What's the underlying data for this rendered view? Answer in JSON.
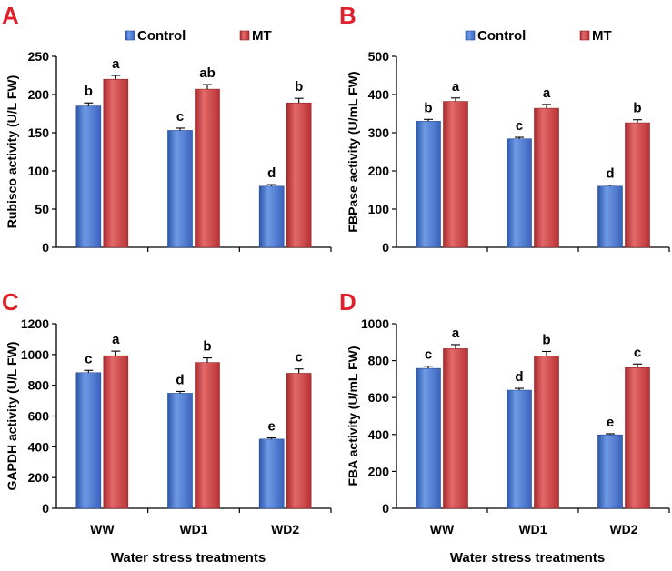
{
  "colors": {
    "control": "#3f6fc8",
    "mt": "#c8383a",
    "letter": "#e0202a"
  },
  "chart_data": [
    {
      "type": "bar",
      "panel": "A",
      "ylabel": "Rubisco activity (U/L FW)",
      "xlabel": "",
      "categories": [
        "WW",
        "WD1",
        "WD2"
      ],
      "ylim": [
        0,
        250
      ],
      "yticks": [
        0,
        50,
        100,
        150,
        200,
        250
      ],
      "legend": [
        "Control",
        "MT"
      ],
      "series": [
        {
          "name": "Control",
          "values": [
            185,
            153,
            80
          ],
          "errors": [
            4,
            3,
            2
          ],
          "letters": [
            "b",
            "c",
            "d"
          ]
        },
        {
          "name": "MT",
          "values": [
            220,
            207,
            189
          ],
          "errors": [
            5,
            6,
            6
          ],
          "letters": [
            "a",
            "ab",
            "b"
          ]
        }
      ]
    },
    {
      "type": "bar",
      "panel": "B",
      "ylabel": "FBPase activity (U/mL FW)",
      "xlabel": "",
      "categories": [
        "WW",
        "WD1",
        "WD2"
      ],
      "ylim": [
        0,
        500
      ],
      "yticks": [
        0,
        100,
        200,
        300,
        400,
        500
      ],
      "legend": [
        "Control",
        "MT"
      ],
      "series": [
        {
          "name": "Control",
          "values": [
            330,
            284,
            160
          ],
          "errors": [
            5,
            4,
            3
          ],
          "letters": [
            "b",
            "c",
            "d"
          ]
        },
        {
          "name": "MT",
          "values": [
            382,
            364,
            326
          ],
          "errors": [
            9,
            10,
            8
          ],
          "letters": [
            "a",
            "a",
            "b"
          ]
        }
      ]
    },
    {
      "type": "bar",
      "panel": "C",
      "ylabel": "GAPDH activity (U/L FW)",
      "xlabel": "Water stress treatments",
      "categories": [
        "WW",
        "WD1",
        "WD2"
      ],
      "ylim": [
        0,
        1200
      ],
      "yticks": [
        0,
        200,
        400,
        600,
        800,
        1000,
        1200
      ],
      "legend": [],
      "series": [
        {
          "name": "Control",
          "values": [
            882,
            748,
            450
          ],
          "errors": [
            15,
            12,
            8
          ],
          "letters": [
            "c",
            "d",
            "e"
          ]
        },
        {
          "name": "MT",
          "values": [
            992,
            948,
            878
          ],
          "errors": [
            30,
            30,
            28
          ],
          "letters": [
            "a",
            "b",
            "c"
          ]
        }
      ]
    },
    {
      "type": "bar",
      "panel": "D",
      "ylabel": "FBA activity (U/mL FW)",
      "xlabel": "Water stress treatments",
      "categories": [
        "WW",
        "WD1",
        "WD2"
      ],
      "ylim": [
        0,
        1000
      ],
      "yticks": [
        0,
        200,
        400,
        600,
        800,
        1000
      ],
      "legend": [],
      "series": [
        {
          "name": "Control",
          "values": [
            758,
            640,
            398
          ],
          "errors": [
            12,
            10,
            6
          ],
          "letters": [
            "c",
            "d",
            "e"
          ]
        },
        {
          "name": "MT",
          "values": [
            865,
            826,
            762
          ],
          "errors": [
            22,
            24,
            20
          ],
          "letters": [
            "a",
            "b",
            "c"
          ]
        }
      ]
    }
  ]
}
